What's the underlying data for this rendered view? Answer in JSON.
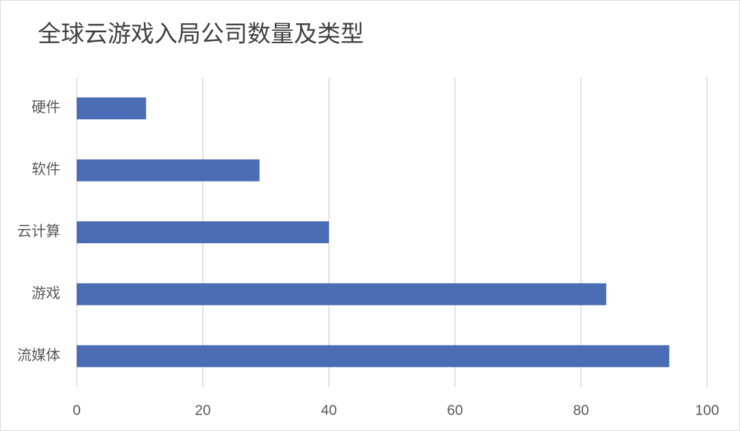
{
  "chart_data": {
    "type": "bar",
    "orientation": "horizontal",
    "title": "全球云游戏入局公司数量及类型",
    "categories": [
      "硬件",
      "软件",
      "云计算",
      "游戏",
      "流媒体"
    ],
    "values": [
      11,
      29,
      40,
      84,
      94
    ],
    "color": "#4a6db5",
    "xlim": [
      0,
      100
    ],
    "xticks": [
      0,
      20,
      40,
      60,
      80,
      100
    ],
    "grid": true
  }
}
